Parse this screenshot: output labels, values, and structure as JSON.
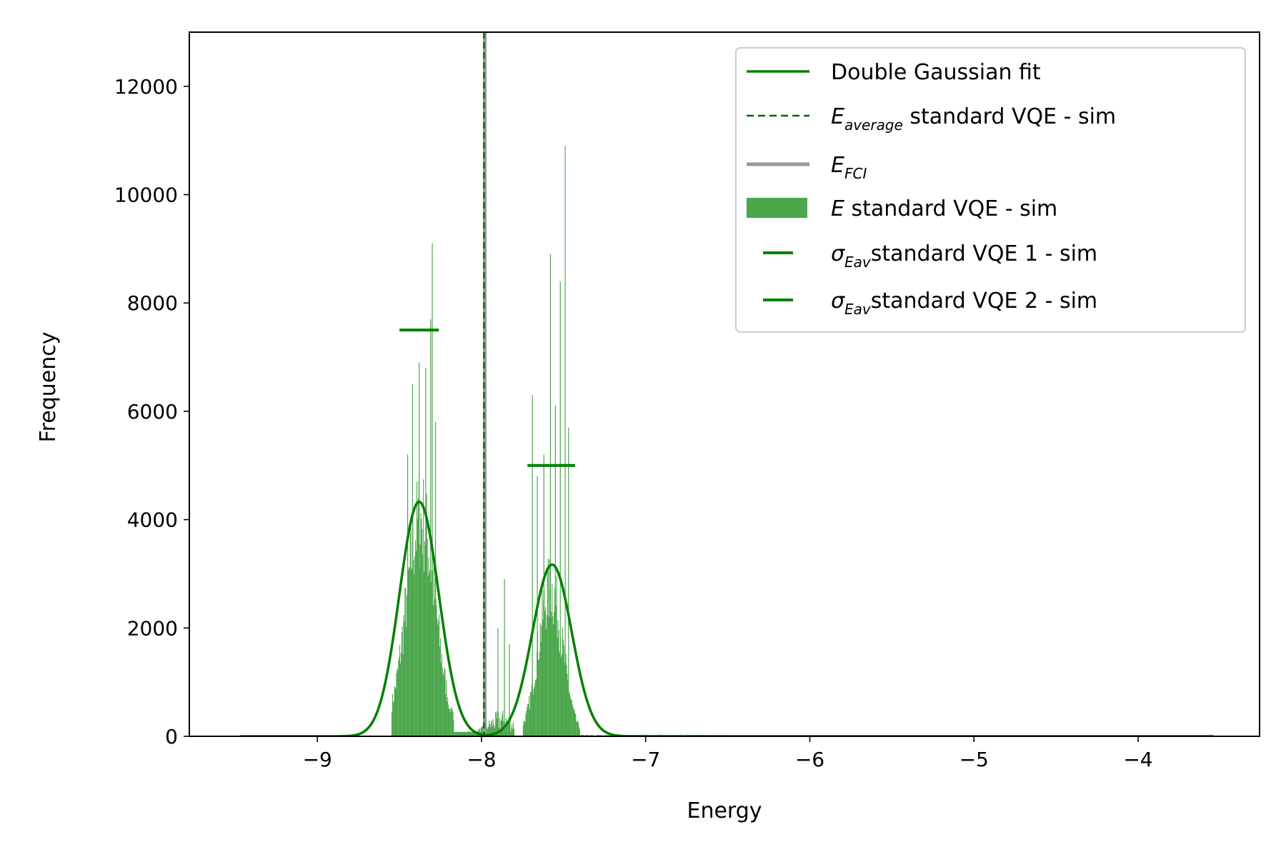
{
  "chart_data": {
    "type": "histogram",
    "title": "",
    "xlabel": "Energy",
    "ylabel": "Frequency",
    "xlim": [
      -9.78,
      -3.26
    ],
    "ylim": [
      0,
      13000
    ],
    "xticks": [
      -9,
      -8,
      -7,
      -6,
      -5,
      -4
    ],
    "xtick_labels": [
      "−9",
      "−8",
      "−7",
      "−6",
      "−5",
      "−4"
    ],
    "yticks": [
      0,
      2000,
      4000,
      6000,
      8000,
      10000,
      12000
    ],
    "ytick_labels": [
      "0",
      "2000",
      "4000",
      "6000",
      "8000",
      "10000",
      "12000"
    ],
    "grid": false,
    "legend_position": "top-right",
    "histogram": {
      "name": "E standard VQE - sim",
      "color": "#4ca64c",
      "bin_range": [
        -9.47,
        -3.54
      ],
      "peaks": [
        {
          "center": -8.37,
          "sigma": 0.09,
          "base_height": 4000,
          "range": [
            -8.55,
            -8.17
          ]
        },
        {
          "center": -7.58,
          "sigma": 0.075,
          "base_height": 2700,
          "range": [
            -7.75,
            -7.4
          ]
        }
      ],
      "spikes": [
        {
          "x": -8.3,
          "y": 9100
        },
        {
          "x": -8.31,
          "y": 7700
        },
        {
          "x": -8.34,
          "y": 6800
        },
        {
          "x": -8.38,
          "y": 6900
        },
        {
          "x": -8.42,
          "y": 6500
        },
        {
          "x": -8.28,
          "y": 5800
        },
        {
          "x": -8.45,
          "y": 5200
        },
        {
          "x": -7.49,
          "y": 10900
        },
        {
          "x": -7.58,
          "y": 8900
        },
        {
          "x": -7.52,
          "y": 8400
        },
        {
          "x": -7.69,
          "y": 6300
        },
        {
          "x": -7.47,
          "y": 5700
        },
        {
          "x": -7.55,
          "y": 6100
        },
        {
          "x": -7.62,
          "y": 5200
        },
        {
          "x": -7.66,
          "y": 4800
        },
        {
          "x": -7.86,
          "y": 2900
        },
        {
          "x": -7.9,
          "y": 2000
        },
        {
          "x": -7.83,
          "y": 1700
        }
      ]
    },
    "series": [
      {
        "name": "Double Gaussian fit",
        "type": "line",
        "color": "#008000",
        "components": [
          {
            "amplitude": 4330,
            "mean": -8.38,
            "sigma": 0.12
          },
          {
            "amplitude": 3170,
            "mean": -7.57,
            "sigma": 0.12
          }
        ],
        "x_range": [
          -9.47,
          -3.54
        ]
      },
      {
        "name": "E_average standard VQE - sim",
        "type": "vline-dashed",
        "color": "#006400",
        "x": -7.985
      },
      {
        "name": "E_FCI",
        "type": "vline",
        "color": "#999999",
        "x": -7.98
      },
      {
        "name": "σ_Eav standard VQE 1 - sim",
        "type": "hbar",
        "color": "#008000",
        "y": 7500,
        "x_range": [
          -8.5,
          -8.26
        ]
      },
      {
        "name": "σ_Eav standard VQE 2 - sim",
        "type": "hbar",
        "color": "#008000",
        "y": 5000,
        "x_range": [
          -7.72,
          -7.43
        ]
      }
    ]
  },
  "legend": {
    "entries": [
      {
        "main": "Double Gaussian fit",
        "rest": ""
      },
      {
        "main": "E",
        "sub": "average",
        "rest": " standard VQE - sim"
      },
      {
        "main": "E",
        "sub": "FCI",
        "rest": ""
      },
      {
        "main": "E",
        "rest": " standard VQE - sim"
      },
      {
        "main": "σ",
        "sub": "Eav",
        "rest": "standard VQE 1 - sim"
      },
      {
        "main": "σ",
        "sub": "Eav",
        "rest": "standard VQE 2 - sim"
      }
    ]
  }
}
